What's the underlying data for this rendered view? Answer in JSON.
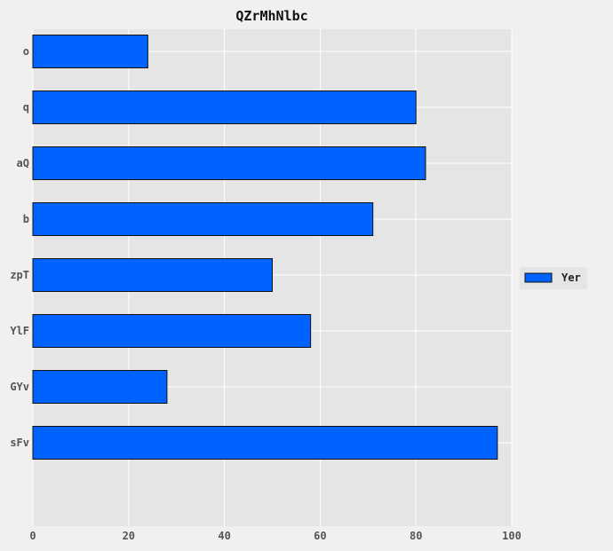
{
  "chart_data": {
    "type": "bar",
    "orientation": "horizontal",
    "title": "QZrMhNlbc",
    "xlabel": "",
    "ylabel": "",
    "categories": [
      "o",
      "q",
      "aQ",
      "b",
      "zpT",
      "YlF",
      "GYv",
      "sFv"
    ],
    "series": [
      {
        "name": "Yer",
        "values": [
          24,
          80,
          82,
          71,
          50,
          58,
          28,
          97
        ]
      }
    ],
    "xlim": [
      0,
      100
    ],
    "xticks": [
      0,
      20,
      40,
      60,
      80,
      100
    ],
    "grid": true,
    "legend_position": "right",
    "colors": {
      "bar": "#0062ff",
      "bar_edge": "#111111",
      "plot_bg": "#e5e5e5",
      "figure_bg": "#f0f0f0",
      "grid": "#ffffff",
      "legend_bg": "#e5e5e5"
    }
  }
}
